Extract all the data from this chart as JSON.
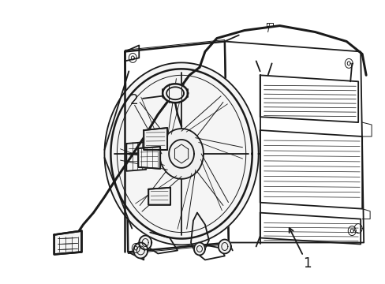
{
  "background_color": "#ffffff",
  "line_color": "#1a1a1a",
  "lw_main": 1.3,
  "lw_thin": 0.7,
  "lw_thick": 1.8,
  "fig_width": 4.89,
  "fig_height": 3.6,
  "dpi": 100,
  "label_1": "1",
  "label_2": "2"
}
